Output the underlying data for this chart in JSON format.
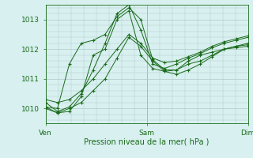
{
  "bg_color": "#d8f0f0",
  "grid_color": "#b0c8c8",
  "line_color": "#1a6b1a",
  "marker_color": "#1a6b1a",
  "xlabel": "Pression niveau de la mer( hPa )",
  "xlabel_color": "#1a6b1a",
  "tick_color": "#1a6b1a",
  "ylim": [
    1009.5,
    1013.5
  ],
  "yticks": [
    1010,
    1011,
    1012,
    1013
  ],
  "xtick_labels": [
    "Ven",
    "Sam",
    "Dim"
  ],
  "xtick_positions": [
    0,
    0.5,
    1.0
  ],
  "vline_positions": [
    0.0,
    0.5,
    1.0
  ],
  "series": [
    [
      1010.05,
      1010.0,
      1011.5,
      1012.2,
      1012.3,
      1012.5,
      1013.1,
      1013.4,
      1013.0,
      1011.65,
      1011.3,
      1011.3,
      1011.6,
      1011.8,
      1011.9,
      1012.0,
      1012.1,
      1012.15
    ],
    [
      1010.0,
      1009.85,
      1009.9,
      1010.4,
      1011.8,
      1012.0,
      1013.0,
      1013.3,
      1011.8,
      1011.35,
      1011.25,
      1011.3,
      1011.5,
      1011.6,
      1011.8,
      1012.0,
      1012.05,
      1012.1
    ],
    [
      1010.2,
      1009.9,
      1010.05,
      1010.5,
      1011.3,
      1012.2,
      1013.2,
      1013.5,
      1012.65,
      1011.5,
      1011.35,
      1011.5,
      1011.7,
      1011.85,
      1012.05,
      1012.2,
      1012.3,
      1012.4
    ],
    [
      1010.05,
      1009.85,
      1010.0,
      1010.2,
      1010.6,
      1011.0,
      1011.7,
      1012.4,
      1012.1,
      1011.6,
      1011.25,
      1011.15,
      1011.3,
      1011.5,
      1011.75,
      1012.0,
      1012.1,
      1012.2
    ],
    [
      1010.3,
      1010.2,
      1010.3,
      1010.6,
      1011.0,
      1011.5,
      1012.0,
      1012.5,
      1012.2,
      1011.7,
      1011.55,
      1011.6,
      1011.75,
      1011.9,
      1012.1,
      1012.25,
      1012.35,
      1012.45
    ]
  ]
}
